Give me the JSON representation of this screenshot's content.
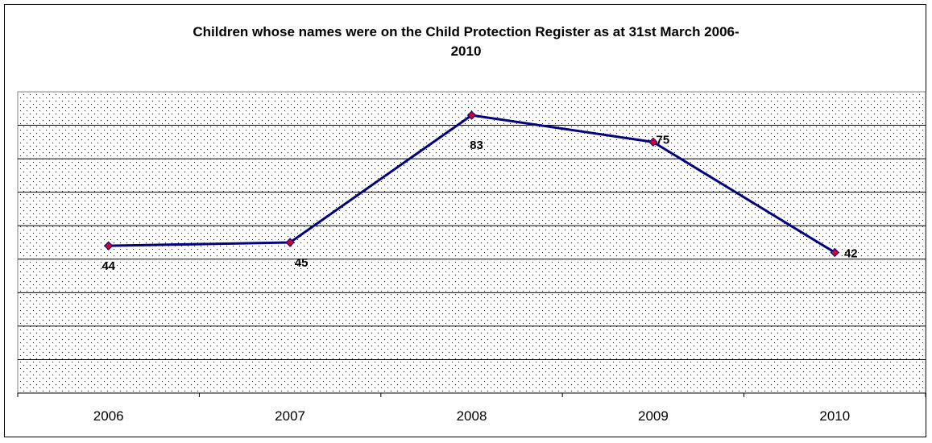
{
  "chart_data": {
    "type": "line",
    "title_line1": "Children whose names were on the Child Protection Register as at 31st March 2006-",
    "title_line2": "2010",
    "categories": [
      "2006",
      "2007",
      "2008",
      "2009",
      "2010"
    ],
    "series": [
      {
        "values": [
          44,
          45,
          83,
          75,
          42
        ],
        "data_labels": [
          "44",
          "45",
          "83",
          "75",
          "42"
        ],
        "line_color": "#000080",
        "marker_color": "#cc0033"
      }
    ],
    "xlabel": "",
    "ylabel": "",
    "ylim": [
      0,
      90
    ],
    "grid": true,
    "legend": "none",
    "plot_pattern": "dotted"
  }
}
